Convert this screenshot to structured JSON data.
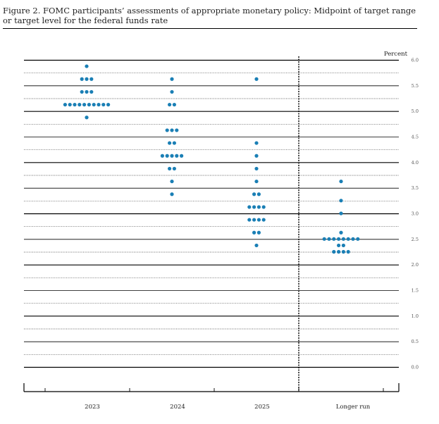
{
  "title": {
    "line1": "Figure 2.  FOMC participants’ assessments of appropriate monetary policy:  Midpoint of target range",
    "line2": "or target level for the federal funds rate"
  },
  "chart_data": {
    "type": "scatter",
    "title": "Figure 2.  FOMC participants’ assessments of appropriate monetary policy:  Midpoint of target range or target level for the federal funds rate",
    "ylabel": "Percent",
    "ylim": [
      0,
      6.0
    ],
    "yticks": [
      "6.0",
      "5.5",
      "5.0",
      "4.5",
      "4.0",
      "3.5",
      "3.0",
      "2.5",
      "2.0",
      "1.5",
      "1.0",
      "0.5",
      "0.0"
    ],
    "categories": [
      "2023",
      "2024",
      "2025",
      "Longer run"
    ],
    "dot_color": "#1a7fb5",
    "points": [
      {
        "category": "2023",
        "rates": [
          {
            "y": 5.875,
            "count": 1
          },
          {
            "y": 5.625,
            "count": 3
          },
          {
            "y": 5.375,
            "count": 3
          },
          {
            "y": 5.125,
            "count": 10
          },
          {
            "y": 4.875,
            "count": 1
          }
        ]
      },
      {
        "category": "2024",
        "rates": [
          {
            "y": 5.625,
            "count": 1
          },
          {
            "y": 5.375,
            "count": 1
          },
          {
            "y": 5.125,
            "count": 2
          },
          {
            "y": 4.625,
            "count": 3
          },
          {
            "y": 4.375,
            "count": 2
          },
          {
            "y": 4.125,
            "count": 5
          },
          {
            "y": 3.875,
            "count": 2
          },
          {
            "y": 3.625,
            "count": 1
          },
          {
            "y": 3.375,
            "count": 1
          }
        ]
      },
      {
        "category": "2025",
        "rates": [
          {
            "y": 5.625,
            "count": 1
          },
          {
            "y": 4.375,
            "count": 1
          },
          {
            "y": 4.125,
            "count": 1
          },
          {
            "y": 3.875,
            "count": 1
          },
          {
            "y": 3.625,
            "count": 1
          },
          {
            "y": 3.375,
            "count": 2
          },
          {
            "y": 3.125,
            "count": 4
          },
          {
            "y": 2.875,
            "count": 4
          },
          {
            "y": 2.625,
            "count": 2
          },
          {
            "y": 2.375,
            "count": 1
          }
        ]
      },
      {
        "category": "Longer run",
        "rates": [
          {
            "y": 3.625,
            "count": 1
          },
          {
            "y": 3.25,
            "count": 1
          },
          {
            "y": 3.0,
            "count": 1
          },
          {
            "y": 2.625,
            "count": 1
          },
          {
            "y": 2.5,
            "count": 8
          },
          {
            "y": 2.375,
            "count": 2
          },
          {
            "y": 2.25,
            "count": 4
          }
        ]
      }
    ]
  }
}
